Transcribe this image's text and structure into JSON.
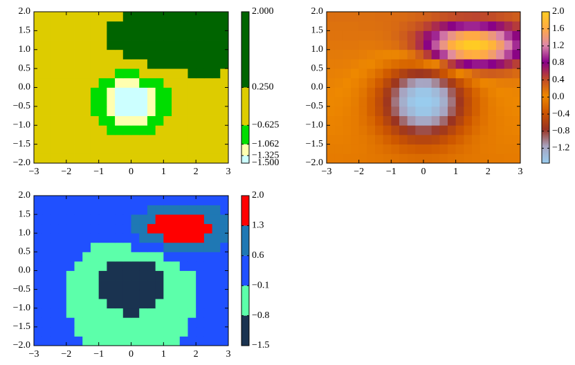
{
  "chart_data": [
    {
      "type": "pcolormesh-bounds",
      "xlim": [
        -3,
        3
      ],
      "ylim": [
        -2,
        2
      ],
      "xticks": [
        {
          "value": -3,
          "label": "−3"
        },
        {
          "value": -2,
          "label": "−2"
        },
        {
          "value": -1,
          "label": "−1"
        },
        0,
        1,
        2,
        3
      ],
      "yticks": [
        {
          "value": -2,
          "label": "−2.0"
        },
        {
          "value": -1.5,
          "label": "−1.5"
        },
        {
          "value": -1,
          "label": "−1.0"
        },
        {
          "value": -0.5,
          "label": "−0.5"
        },
        {
          "value": 0,
          "label": "0.0"
        },
        0.5,
        {
          "value": 1,
          "label": "1.0"
        },
        1.5,
        {
          "value": 2,
          "label": "2.0"
        }
      ],
      "z": [
        [
          -0.07,
          -0.07,
          -0.08,
          -0.08,
          -0.09,
          -0.1,
          -0.11,
          -0.13,
          -0.15,
          -0.17,
          -0.19,
          -0.2,
          -0.2,
          -0.19,
          -0.17,
          -0.15,
          -0.13,
          -0.11,
          -0.1,
          -0.09,
          -0.08,
          -0.08,
          -0.07,
          -0.07
        ],
        [
          -0.06,
          -0.06,
          -0.06,
          -0.07,
          -0.08,
          -0.11,
          -0.14,
          -0.18,
          -0.22,
          -0.27,
          -0.3,
          -0.32,
          -0.32,
          -0.3,
          -0.27,
          -0.22,
          -0.18,
          -0.14,
          -0.11,
          -0.08,
          -0.07,
          -0.06,
          -0.06,
          -0.06
        ],
        [
          -0.04,
          -0.04,
          -0.05,
          -0.07,
          -0.09,
          -0.13,
          -0.19,
          -0.27,
          -0.35,
          -0.44,
          -0.51,
          -0.54,
          -0.54,
          -0.51,
          -0.44,
          -0.35,
          -0.27,
          -0.19,
          -0.13,
          -0.09,
          -0.07,
          -0.05,
          -0.04,
          -0.04
        ],
        [
          -0.02,
          -0.03,
          -0.04,
          -0.07,
          -0.11,
          -0.18,
          -0.28,
          -0.4,
          -0.54,
          -0.68,
          -0.79,
          -0.86,
          -0.86,
          -0.79,
          -0.68,
          -0.54,
          -0.4,
          -0.28,
          -0.18,
          -0.11,
          -0.07,
          -0.04,
          -0.03,
          -0.02
        ],
        [
          -0.01,
          -0.02,
          -0.04,
          -0.07,
          -0.14,
          -0.23,
          -0.37,
          -0.55,
          -0.75,
          -0.95,
          -1.11,
          -1.2,
          -1.2,
          -1.11,
          -0.95,
          -0.75,
          -0.55,
          -0.37,
          -0.23,
          -0.14,
          -0.07,
          -0.04,
          -0.02,
          -0.01
        ],
        [
          0.01,
          0,
          -0.03,
          -0.07,
          -0.15,
          -0.28,
          -0.45,
          -0.67,
          -0.92,
          -1.17,
          -1.37,
          -1.49,
          -1.49,
          -1.37,
          -1.17,
          -0.92,
          -0.67,
          -0.45,
          -0.28,
          -0.15,
          -0.07,
          -0.03,
          0,
          0.01
        ],
        [
          0.02,
          0.01,
          -0.01,
          -0.06,
          -0.15,
          -0.28,
          -0.47,
          -0.71,
          -0.99,
          -1.26,
          -1.48,
          -1.6,
          -1.6,
          -1.48,
          -1.26,
          -0.99,
          -0.71,
          -0.47,
          -0.28,
          -0.15,
          -0.06,
          -0.01,
          0.01,
          0.02
        ],
        [
          0.04,
          0.03,
          0.01,
          -0.04,
          -0.12,
          -0.25,
          -0.43,
          -0.66,
          -0.91,
          -1.17,
          -1.37,
          -1.49,
          -1.49,
          -1.37,
          -1.16,
          -0.91,
          -0.64,
          -0.42,
          -0.24,
          -0.11,
          -0.03,
          0.02,
          0.04,
          0.05
        ],
        [
          0.06,
          0.05,
          0.03,
          -0.01,
          -0.07,
          -0.18,
          -0.32,
          -0.51,
          -0.72,
          -0.93,
          -1.09,
          -1.18,
          -1.17,
          -1.06,
          -0.88,
          -0.66,
          -0.44,
          -0.25,
          -0.1,
          0,
          0.06,
          0.09,
          0.1,
          0.1
        ],
        [
          0.08,
          0.07,
          0.06,
          0.03,
          -0.01,
          -0.09,
          -0.19,
          -0.32,
          -0.46,
          -0.59,
          -0.69,
          -0.73,
          -0.69,
          -0.57,
          -0.4,
          -0.21,
          -0.02,
          0.13,
          0.24,
          0.29,
          0.31,
          0.29,
          0.26,
          0.22
        ],
        [
          0.1,
          0.1,
          0.09,
          0.07,
          0.05,
          0.01,
          -0.05,
          -0.12,
          -0.18,
          -0.23,
          -0.24,
          -0.2,
          -0.09,
          0.08,
          0.29,
          0.5,
          0.68,
          0.82,
          0.88,
          0.88,
          0.82,
          0.72,
          0.6,
          0.48
        ],
        [
          0.12,
          0.12,
          0.11,
          0.11,
          0.1,
          0.08,
          0.06,
          0.05,
          0.05,
          0.08,
          0.16,
          0.3,
          0.49,
          0.74,
          1.01,
          1.27,
          1.49,
          1.62,
          1.66,
          1.59,
          1.45,
          1.25,
          1.02,
          0.8
        ],
        [
          0.14,
          0.14,
          0.14,
          0.14,
          0.13,
          0.13,
          0.14,
          0.16,
          0.19,
          0.27,
          0.39,
          0.56,
          0.8,
          1.07,
          1.36,
          1.64,
          1.85,
          1.98,
          1.99,
          1.9,
          1.72,
          1.47,
          1.2,
          0.94
        ],
        [
          0.16,
          0.16,
          0.16,
          0.16,
          0.16,
          0.16,
          0.17,
          0.19,
          0.23,
          0.3,
          0.4,
          0.54,
          0.72,
          0.93,
          1.15,
          1.35,
          1.51,
          1.6,
          1.61,
          1.53,
          1.39,
          1.2,
          0.99,
          0.78
        ],
        [
          0.17,
          0.17,
          0.17,
          0.17,
          0.18,
          0.18,
          0.19,
          0.2,
          0.22,
          0.26,
          0.31,
          0.38,
          0.47,
          0.58,
          0.69,
          0.8,
          0.88,
          0.92,
          0.92,
          0.88,
          0.81,
          0.71,
          0.6,
          0.5
        ],
        [
          0.19,
          0.19,
          0.19,
          0.19,
          0.19,
          0.19,
          0.2,
          0.2,
          0.21,
          0.22,
          0.24,
          0.26,
          0.29,
          0.33,
          0.37,
          0.4,
          0.43,
          0.44,
          0.45,
          0.43,
          0.41,
          0.37,
          0.34,
          0.3
        ]
      ],
      "colorbar": {
        "boundaries": [
          -1.5,
          -1.325,
          -1.062,
          -0.625,
          0.25,
          2.0
        ],
        "colors": [
          "#ccffff",
          "#ffffb0",
          "#00dd00",
          "#ddcc00",
          "#006400"
        ],
        "ticks": [
          {
            "value": -1.5,
            "label": "−1.500"
          },
          {
            "value": -1.325,
            "label": "−1.325"
          },
          {
            "value": -1.062,
            "label": "−1.062"
          },
          {
            "value": -0.625,
            "label": "−0.625"
          },
          {
            "value": 0.25,
            "label": "0.250"
          },
          {
            "value": 2,
            "label": "2.000"
          }
        ]
      }
    },
    {
      "type": "pcolormesh-continuous",
      "xlim": [
        -3,
        3
      ],
      "ylim": [
        -2,
        2
      ],
      "xticks": [
        {
          "value": -3,
          "label": "−3"
        },
        {
          "value": -2,
          "label": "−2"
        },
        {
          "value": -1,
          "label": "−1"
        },
        0,
        1,
        2,
        3
      ],
      "yticks": [
        {
          "value": -2,
          "label": "−2.0"
        },
        {
          "value": -1.5,
          "label": "−1.5"
        },
        {
          "value": -1,
          "label": "−1.0"
        },
        {
          "value": -0.5,
          "label": "−0.5"
        },
        {
          "value": 0,
          "label": "0.0"
        },
        0.5,
        {
          "value": 1,
          "label": "1.0"
        },
        1.5,
        {
          "value": 2,
          "label": "2.0"
        }
      ],
      "colorbar": {
        "clim": [
          -1.55,
          2.0
        ],
        "colors": [
          "#99ccee",
          "#a8a4c0",
          "#993322",
          "#cc5500",
          "#ee8800",
          "#c04a28",
          "#880088",
          "#dd88aa",
          "#ffaa44",
          "#ffcc22"
        ],
        "ticks": [
          {
            "value": -1.2,
            "label": "−1.2"
          },
          {
            "value": -0.8,
            "label": "−0.8"
          },
          {
            "value": -0.4,
            "label": "−0.4"
          },
          {
            "value": 0,
            "label": "0.0"
          },
          0.4,
          0.8,
          1.2,
          1.6,
          {
            "value": 2,
            "label": "2.0"
          }
        ]
      }
    },
    {
      "type": "pcolormesh-bounds",
      "xlim": [
        -3,
        3
      ],
      "ylim": [
        -2,
        2
      ],
      "xticks": [
        {
          "value": -3,
          "label": "−3"
        },
        {
          "value": -2,
          "label": "−2"
        },
        {
          "value": -1,
          "label": "−1"
        },
        0,
        1,
        2,
        3
      ],
      "yticks": [
        {
          "value": -2,
          "label": "−2.0"
        },
        {
          "value": -1.5,
          "label": "−1.5"
        },
        {
          "value": -1,
          "label": "−1.0"
        },
        {
          "value": -0.5,
          "label": "−0.5"
        },
        {
          "value": 0,
          "label": "0.0"
        },
        0.5,
        {
          "value": 1,
          "label": "1.0"
        },
        1.5,
        {
          "value": 2,
          "label": "2.0"
        }
      ],
      "colorbar": {
        "boundaries": [
          -1.5,
          -0.8,
          -0.1,
          0.6,
          1.3,
          2.0
        ],
        "colors": [
          "#1a3350",
          "#5cffaa",
          "#2050ff",
          "#1f78b4",
          "#ff0000"
        ],
        "ticks": [
          {
            "value": -1.5,
            "label": "−1.5"
          },
          {
            "value": -0.8,
            "label": "−0.8"
          },
          {
            "value": -0.1,
            "label": "−0.1"
          },
          0.6,
          1.3,
          {
            "value": 2,
            "label": "2.0"
          }
        ]
      }
    }
  ]
}
